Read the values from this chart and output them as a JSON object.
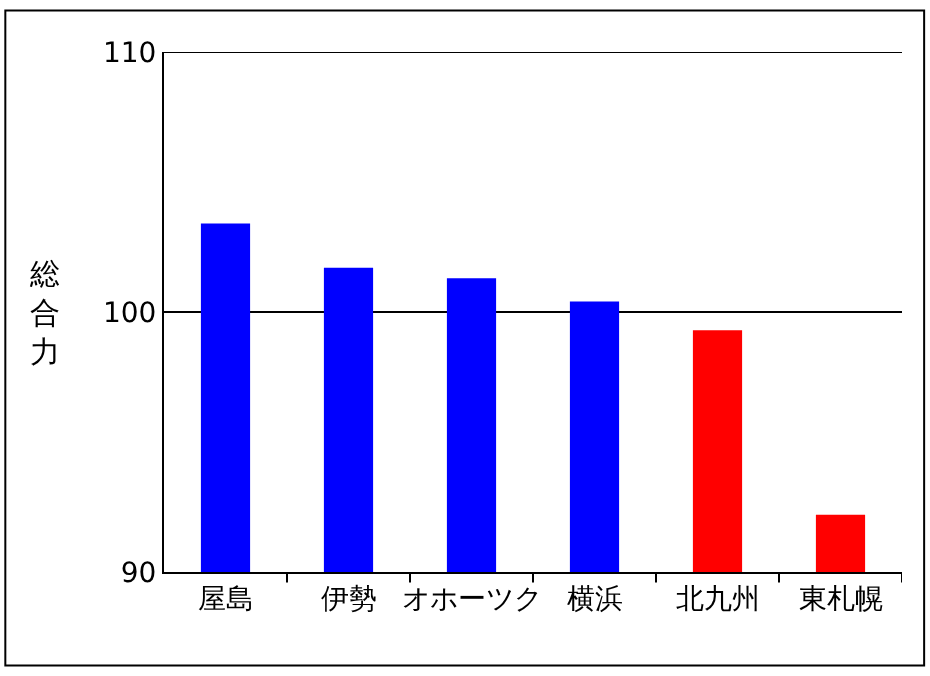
{
  "chart_data": {
    "type": "bar",
    "ylabel": "総合力",
    "categories": [
      "屋島",
      "伊勢",
      "オホーツク",
      "横浜",
      "北九州",
      "東札幌"
    ],
    "values": [
      103.4,
      101.7,
      101.3,
      100.4,
      99.3,
      92.2
    ],
    "colors": [
      "#0000ff",
      "#0000ff",
      "#0000ff",
      "#0000ff",
      "#ff0000",
      "#ff0000"
    ],
    "ylim": [
      90,
      110
    ],
    "yticks": [
      90,
      100,
      110
    ],
    "grid": "y"
  }
}
